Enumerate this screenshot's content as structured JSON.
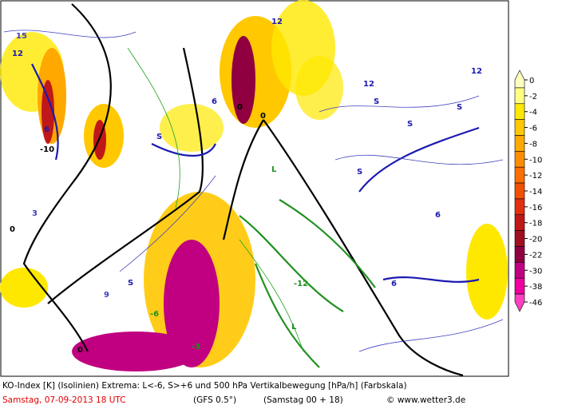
{
  "map": {
    "footer": {
      "line1": "KO-Index [K] (Isolinien)  Extrema: L<-6, S>+6 und 500 hPa Vertikalbewegung [hPa/h] (Farbskala)",
      "date": "Samstag, 07-09-2013  18 UTC",
      "model": "(GFS 0.5°)",
      "run": "(Samstag 00 + 18)",
      "copyright": "© www.wetter3.de"
    },
    "colorbar": {
      "levels": [
        0,
        -2,
        -4,
        -6,
        -8,
        -10,
        -12,
        -14,
        -16,
        -18,
        -20,
        -22,
        -30,
        -38,
        -46
      ],
      "colors": [
        "#ffffc0",
        "#ffff80",
        "#ffe800",
        "#ffc800",
        "#ffa800",
        "#ff8c00",
        "#ff6e00",
        "#f05000",
        "#e03010",
        "#c01818",
        "#a01020",
        "#900040",
        "#c00080",
        "#f000a0",
        "#ff40c0"
      ]
    },
    "labels": [
      "12",
      "12",
      "12",
      "12",
      "6",
      "6",
      "6",
      "6",
      "0",
      "0",
      "0",
      "0",
      "S",
      "S",
      "S",
      "S",
      "S",
      "S",
      "L",
      "L",
      "-12",
      "-6",
      "-3",
      "-10",
      "15",
      "9",
      "3"
    ]
  }
}
